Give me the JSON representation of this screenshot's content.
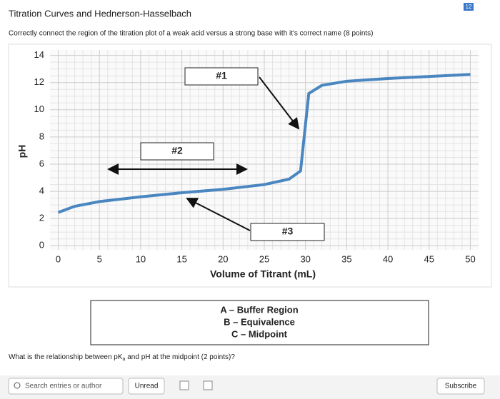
{
  "header": {
    "title": "Titration Curves and Hednerson-Hasselbach",
    "badge": "12",
    "instruction": "Correctly connect the region of the titration plot of a weak acid versus a strong base with it's correct name (8 points)"
  },
  "chart_data": {
    "type": "line",
    "x_label": "Volume of Titrant (mL)",
    "y_label": "pH",
    "x": [
      0,
      2,
      5,
      10,
      15,
      20,
      25,
      28,
      29.4,
      30.4,
      32,
      35,
      40,
      45,
      50
    ],
    "series": [
      {
        "color": "#4a86c0",
        "values": [
          2.45,
          2.9,
          3.25,
          3.6,
          3.9,
          4.15,
          4.5,
          4.9,
          5.5,
          11.2,
          11.8,
          12.1,
          12.3,
          12.45,
          12.6
        ]
      }
    ],
    "xlim": [
      -1,
      51
    ],
    "ylim": [
      -0.3,
      14.4
    ],
    "xticks": [
      0,
      5,
      10,
      15,
      20,
      25,
      30,
      35,
      40,
      45,
      50
    ],
    "yticks": [
      0,
      2,
      4,
      6,
      8,
      10,
      12,
      14
    ],
    "grid": true,
    "annotations": [
      "#1",
      "#2",
      "#3"
    ]
  },
  "answer_box": [
    "A – Buffer Region",
    "B – Equivalence",
    "C – Midpoint"
  ],
  "question": [
    "What is the relationship between pK",
    "a",
    " and pH at the midpoint (2 points)?"
  ],
  "toolbar": {
    "search": "Search entries or author",
    "unread": "Unread",
    "subscribe": "Subscribe"
  }
}
